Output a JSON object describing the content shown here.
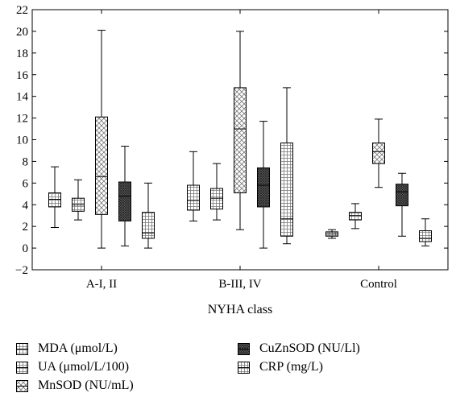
{
  "chart_data": {
    "type": "box",
    "xlabel": "NYHA class",
    "ylabel": "",
    "ylim": [
      -2,
      22
    ],
    "yticks": [
      -2,
      0,
      2,
      4,
      6,
      8,
      10,
      12,
      14,
      16,
      18,
      20,
      22
    ],
    "categories": [
      "A-I, II",
      "B-III, IV",
      "Control"
    ],
    "series": [
      {
        "name": "MDA (μmol/L)",
        "pattern": "grid",
        "boxes": [
          {
            "min": 1.9,
            "q1": 3.8,
            "median": 4.5,
            "q3": 5.1,
            "max": 7.5
          },
          {
            "min": 2.5,
            "q1": 3.5,
            "median": 4.4,
            "q3": 5.8,
            "max": 8.9
          },
          {
            "min": 0.9,
            "q1": 1.1,
            "median": 1.3,
            "q3": 1.5,
            "max": 1.7
          }
        ]
      },
      {
        "name": "UA (μmol/L/100)",
        "pattern": "grid",
        "boxes": [
          {
            "min": 2.6,
            "q1": 3.4,
            "median": 4.0,
            "q3": 4.6,
            "max": 6.3
          },
          {
            "min": 2.6,
            "q1": 3.6,
            "median": 4.6,
            "q3": 5.5,
            "max": 7.8
          },
          {
            "min": 1.8,
            "q1": 2.6,
            "median": 3.0,
            "q3": 3.3,
            "max": 4.1
          }
        ]
      },
      {
        "name": "MnSOD (NU/mL)",
        "pattern": "crosshatch",
        "boxes": [
          {
            "min": 0.0,
            "q1": 3.1,
            "median": 6.6,
            "q3": 12.1,
            "max": 20.1
          },
          {
            "min": 1.7,
            "q1": 5.1,
            "median": 11.0,
            "q3": 14.8,
            "max": 20.0
          },
          {
            "min": 5.6,
            "q1": 7.8,
            "median": 8.9,
            "q3": 9.7,
            "max": 11.9
          }
        ]
      },
      {
        "name": "CuZnSOD (NU/Ll)",
        "pattern": "dense",
        "boxes": [
          {
            "min": 0.2,
            "q1": 2.5,
            "median": 4.8,
            "q3": 6.1,
            "max": 9.4
          },
          {
            "min": 0.0,
            "q1": 3.8,
            "median": 5.8,
            "q3": 7.4,
            "max": 11.7
          },
          {
            "min": 1.1,
            "q1": 3.9,
            "median": 5.2,
            "q3": 5.9,
            "max": 6.9
          }
        ]
      },
      {
        "name": "CRP (mg/L)",
        "pattern": "grid",
        "boxes": [
          {
            "min": 0.0,
            "q1": 0.9,
            "median": 1.4,
            "q3": 3.3,
            "max": 6.0
          },
          {
            "min": 0.4,
            "q1": 1.1,
            "median": 2.7,
            "q3": 9.7,
            "max": 14.8
          },
          {
            "min": 0.2,
            "q1": 0.6,
            "median": 0.9,
            "q3": 1.6,
            "max": 2.7
          }
        ]
      }
    ],
    "grid": false,
    "legend_position": "bottom"
  }
}
